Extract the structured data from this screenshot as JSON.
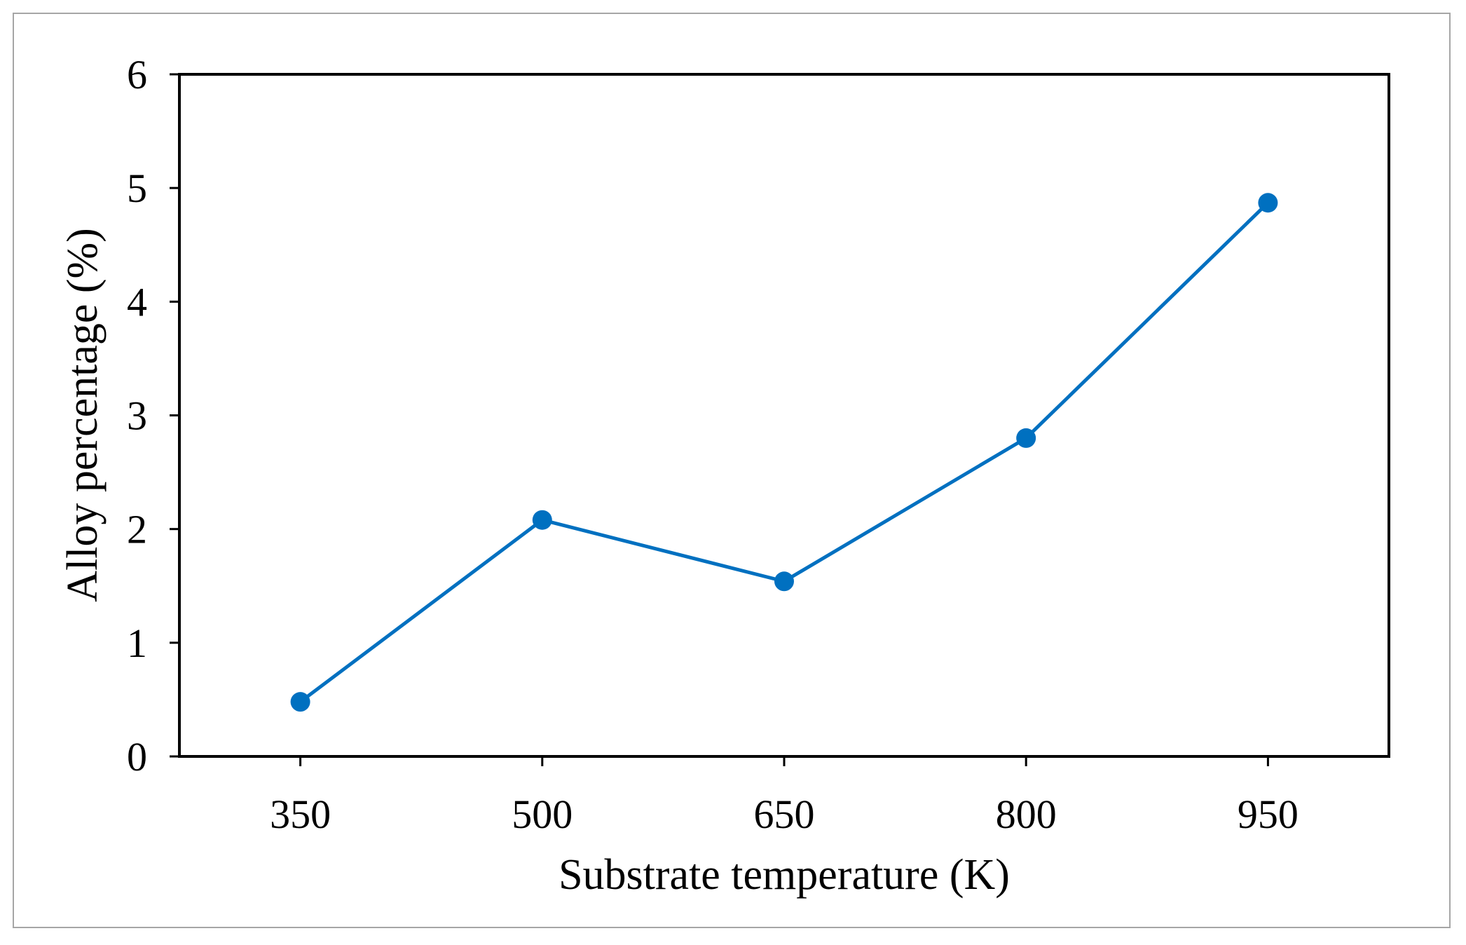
{
  "chart_data": {
    "type": "line",
    "xlabel": "Substrate temperature (K)",
    "ylabel": "Alloy percentage  (%)",
    "categories": [
      "350",
      "500",
      "650",
      "800",
      "950"
    ],
    "series": [
      {
        "values": [
          0.48,
          2.08,
          1.54,
          2.8,
          4.87
        ]
      }
    ],
    "ylim": [
      0,
      6
    ],
    "yticks": [
      "0",
      "1",
      "2",
      "3",
      "4",
      "5",
      "6"
    ],
    "grid": false,
    "legend": "none",
    "colors": {
      "series": "#0070c0",
      "axis": "#000000",
      "frame": "#a6a6a6"
    }
  }
}
